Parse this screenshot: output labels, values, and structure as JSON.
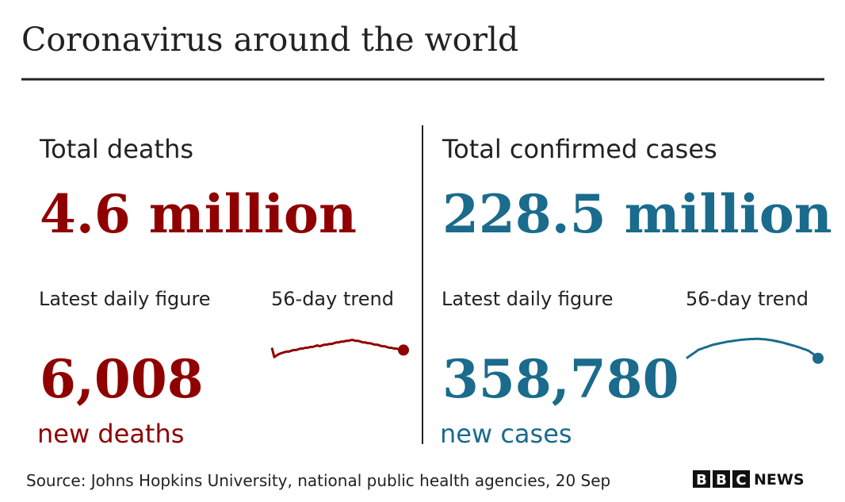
{
  "title": "Coronavirus around the world",
  "panels": [
    {
      "heading": "Total deaths",
      "total": "4.6 million",
      "daily_label": "Latest daily figure",
      "trend_label": "56-day trend",
      "daily": "6,008",
      "daily_unit": "new deaths",
      "color": "#8f0000",
      "trend": {
        "ylim": [
          6500,
          10000
        ],
        "values": [
          8300,
          7100,
          7300,
          7500,
          7600,
          7700,
          7800,
          7800,
          7900,
          8000,
          8000,
          8100,
          8200,
          8200,
          8300,
          8300,
          8400,
          8400,
          8500,
          8600,
          8500,
          8600,
          8700,
          8700,
          8800,
          8800,
          8900,
          9000,
          9000,
          9100,
          9100,
          9200,
          9200,
          9300,
          9300,
          9200,
          9200,
          9100,
          9000,
          9000,
          8900,
          8900,
          8800,
          8700,
          8700,
          8600,
          8500,
          8500,
          8400,
          8300,
          8300,
          8200,
          8200,
          8100,
          8100,
          8000
        ]
      }
    },
    {
      "heading": "Total confirmed cases",
      "total": "228.5 million",
      "daily_label": "Latest daily figure",
      "trend_label": "56-day trend",
      "daily": "358,780",
      "daily_unit": "new cases",
      "color": "#1a6b8c",
      "trend": {
        "ylim": [
          500000,
          660000
        ],
        "values": [
          520000,
          530000,
          540000,
          550000,
          560000,
          570000,
          575000,
          580000,
          585000,
          590000,
          595000,
          600000,
          603000,
          606000,
          609000,
          612000,
          615000,
          618000,
          620000,
          622000,
          624000,
          626000,
          628000,
          630000,
          631000,
          632000,
          633000,
          634000,
          634000,
          635000,
          635000,
          634000,
          633000,
          632000,
          630000,
          628000,
          626000,
          623000,
          620000,
          617000,
          614000,
          610000,
          606000,
          602000,
          598000,
          594000,
          590000,
          585000,
          580000,
          575000,
          570000,
          565000,
          555000,
          545000,
          535000,
          520000
        ]
      }
    }
  ],
  "source": "Source: Johns Hopkins University, national public health agencies, 20 Sep",
  "logo": {
    "blocks": [
      "B",
      "B",
      "C"
    ],
    "text": "NEWS"
  }
}
